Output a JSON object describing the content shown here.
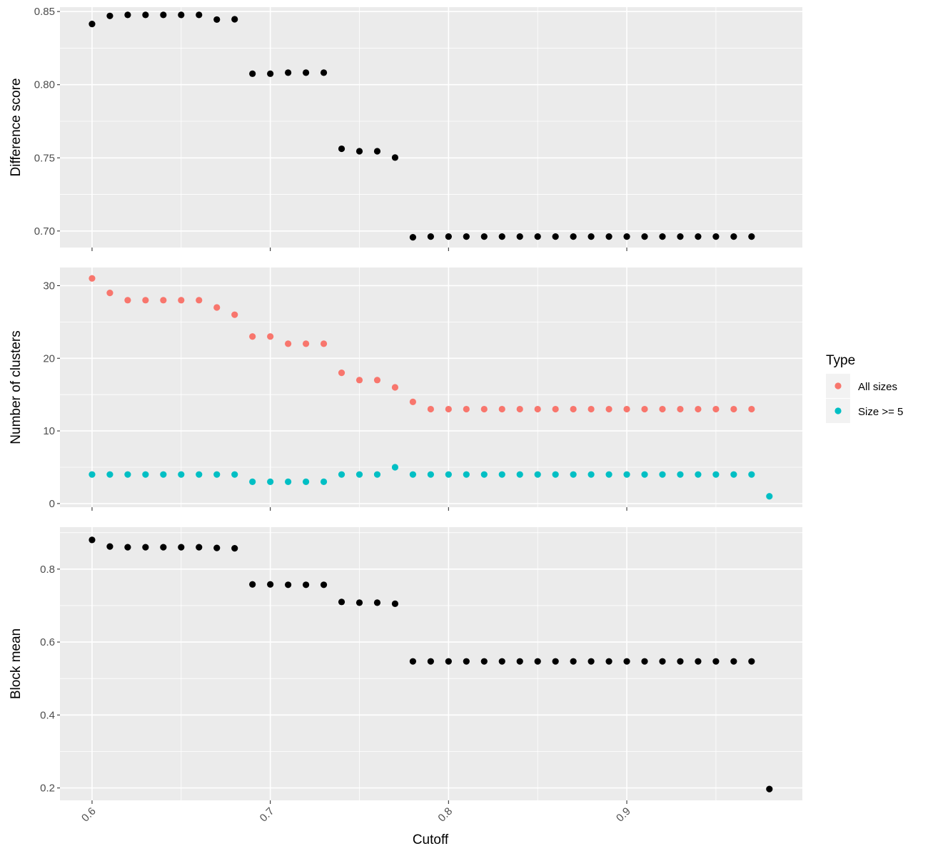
{
  "chart_data": {
    "type": "scatter",
    "layout": "faceted-vertical",
    "xlabel": "Cutoff",
    "x_ticks": [
      0.6,
      0.7,
      0.8,
      0.9
    ],
    "x_tick_labels": [
      "0.6",
      "0.7",
      "0.8",
      "0.9"
    ],
    "xlim": [
      0.582,
      0.9985
    ],
    "x": [
      0.6,
      0.61,
      0.62,
      0.63,
      0.64,
      0.65,
      0.66,
      0.67,
      0.68,
      0.69,
      0.7,
      0.71,
      0.72,
      0.73,
      0.74,
      0.75,
      0.76,
      0.77,
      0.78,
      0.79,
      0.8,
      0.81,
      0.82,
      0.83,
      0.84,
      0.85,
      0.86,
      0.87,
      0.88,
      0.89,
      0.9,
      0.91,
      0.92,
      0.93,
      0.94,
      0.95,
      0.96,
      0.97,
      0.98
    ],
    "legend": {
      "title": "Type",
      "position": "right",
      "entries": [
        {
          "label": "All sizes",
          "color": "#F8766D"
        },
        {
          "label": "Size >= 5",
          "color": "#00BFC4"
        }
      ]
    },
    "panels": [
      {
        "ylabel": "Difference score",
        "ylim": [
          0.6887,
          0.853
        ],
        "y_ticks": [
          0.7,
          0.75,
          0.8,
          0.85
        ],
        "y_tick_labels": [
          "0.70",
          "0.75",
          "0.80",
          "0.85"
        ],
        "series": [
          {
            "color": "#000000",
            "values": [
              0.8415,
              0.847,
              0.8477,
              0.8477,
              0.8477,
              0.8477,
              0.8477,
              0.8445,
              0.8447,
              0.8075,
              0.8075,
              0.8082,
              0.8082,
              0.8082,
              0.7562,
              0.7545,
              0.7545,
              0.7502,
              0.6957,
              0.6962,
              0.6962,
              0.6962,
              0.6962,
              0.6962,
              0.6962,
              0.6962,
              0.6962,
              0.6962,
              0.6962,
              0.6962,
              0.6962,
              0.6962,
              0.6962,
              0.6962,
              0.6962,
              0.6962,
              0.6962,
              0.6962,
              null
            ]
          }
        ]
      },
      {
        "ylabel": "Number of clusters",
        "ylim": [
          -0.5,
          32.5
        ],
        "y_ticks": [
          0,
          10,
          20,
          30
        ],
        "y_tick_labels": [
          "0",
          "10",
          "20",
          "30"
        ],
        "series": [
          {
            "name": "All sizes",
            "color": "#F8766D",
            "values": [
              31,
              29,
              28,
              28,
              28,
              28,
              28,
              27,
              26,
              23,
              23,
              22,
              22,
              22,
              18,
              17,
              17,
              16,
              14,
              13,
              13,
              13,
              13,
              13,
              13,
              13,
              13,
              13,
              13,
              13,
              13,
              13,
              13,
              13,
              13,
              13,
              13,
              13,
              null
            ]
          },
          {
            "name": "Size >= 5",
            "color": "#00BFC4",
            "values": [
              4,
              4,
              4,
              4,
              4,
              4,
              4,
              4,
              4,
              3,
              3,
              3,
              3,
              3,
              4,
              4,
              4,
              5,
              4,
              4,
              4,
              4,
              4,
              4,
              4,
              4,
              4,
              4,
              4,
              4,
              4,
              4,
              4,
              4,
              4,
              4,
              4,
              4,
              1
            ]
          }
        ]
      },
      {
        "ylabel": "Block mean",
        "ylim": [
          0.166,
          0.915
        ],
        "y_ticks": [
          0.2,
          0.4,
          0.6,
          0.8
        ],
        "y_tick_labels": [
          "0.2",
          "0.4",
          "0.6",
          "0.8"
        ],
        "series": [
          {
            "color": "#000000",
            "values": [
              0.88,
              0.862,
              0.86,
              0.86,
              0.86,
              0.86,
              0.86,
              0.858,
              0.857,
              0.758,
              0.758,
              0.757,
              0.757,
              0.757,
              0.71,
              0.708,
              0.708,
              0.705,
              0.547,
              0.547,
              0.547,
              0.547,
              0.547,
              0.547,
              0.547,
              0.547,
              0.547,
              0.547,
              0.547,
              0.547,
              0.547,
              0.547,
              0.547,
              0.547,
              0.547,
              0.547,
              0.547,
              0.547,
              0.197
            ]
          }
        ]
      }
    ]
  }
}
